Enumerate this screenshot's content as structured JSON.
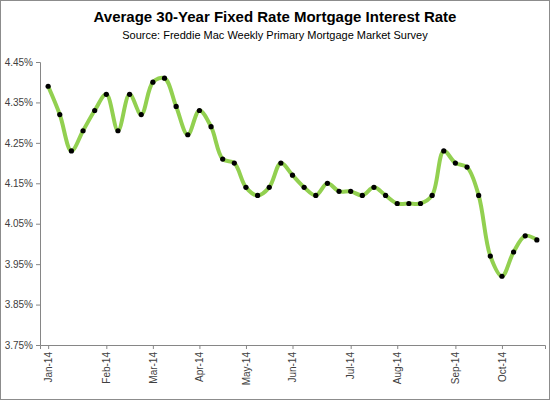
{
  "chart_data": {
    "type": "line",
    "title": "Average 30-Year Fixed Rate Mortgage Interest Rate",
    "subtitle": "Source: Freddie Mac Weekly Primary Mortgage Market Survey",
    "categories": [
      "Jan-14",
      null,
      null,
      null,
      null,
      "Feb-14",
      null,
      null,
      null,
      "Mar-14",
      null,
      null,
      null,
      "Apr-14",
      null,
      null,
      null,
      "May-14",
      null,
      null,
      null,
      "Jun-14",
      null,
      null,
      null,
      null,
      "Jul-14",
      null,
      null,
      null,
      "Aug-14",
      null,
      null,
      null,
      null,
      "Sep-14",
      null,
      null,
      null,
      "Oct-14",
      null,
      null,
      null
    ],
    "values": [
      4.39,
      4.32,
      4.23,
      4.28,
      4.33,
      4.37,
      4.28,
      4.37,
      4.32,
      4.4,
      4.41,
      4.34,
      4.27,
      4.33,
      4.29,
      4.21,
      4.2,
      4.14,
      4.12,
      4.14,
      4.2,
      4.17,
      4.14,
      4.12,
      4.15,
      4.13,
      4.13,
      4.12,
      4.14,
      4.12,
      4.1,
      4.1,
      4.1,
      4.12,
      4.23,
      4.2,
      4.19,
      4.12,
      3.97,
      3.92,
      3.98,
      4.02,
      4.01
    ],
    "color": "#92d050",
    "marker": "circle",
    "grid": false,
    "ylim": [
      3.75,
      4.45
    ],
    "yticks": [
      {
        "value": 3.75,
        "label": "3.75%"
      },
      {
        "value": 3.85,
        "label": "3.85%"
      },
      {
        "value": 3.95,
        "label": "3.95%"
      },
      {
        "value": 4.05,
        "label": "4.05%"
      },
      {
        "value": 4.15,
        "label": "4.15%"
      },
      {
        "value": 4.25,
        "label": "4.25%"
      },
      {
        "value": 4.35,
        "label": "4.35%"
      },
      {
        "value": 4.45,
        "label": "4.45%"
      }
    ]
  }
}
